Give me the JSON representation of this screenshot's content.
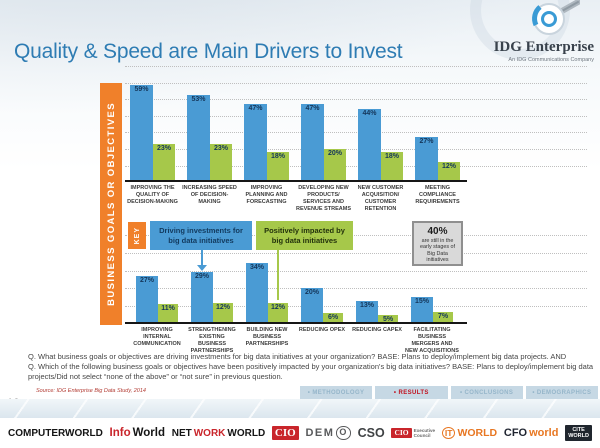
{
  "slide": {
    "page_number": "16",
    "title": "Quality & Speed are Main Drivers to Invest",
    "brand": {
      "name": "IDG Enterprise",
      "tagline": "An IDG Communications Company"
    },
    "axis_label": "BUSINESS GOALS OR OBJECTIVES",
    "key": {
      "label": "KEY",
      "driving_label": "Driving investments for big data initiatives",
      "impacted_label": "Positively impacted by big data initiatives"
    },
    "callout": {
      "value": "40%",
      "text": "are still in the early stages of Big Data initiatives"
    },
    "questions": {
      "q1": "Q. What business goals or objectives are driving investments for big data initiatives at your organization? BASE: Plans to deploy/implement big data projects. AND",
      "q2": "Q. Which of the following business goals or objectives have been positively impacted by your organization's big data initiatives? BASE: Plans to deploy/implement big data projects/Did not select “none of the above” or “not sure” in previous question."
    },
    "source": "Source: IDG Enterprise Big Data Study, 2014",
    "nav": [
      {
        "label": "• METHODOLOGY",
        "active": false
      },
      {
        "label": "• RESULTS",
        "active": true
      },
      {
        "label": "• CONCLUSIONS",
        "active": false
      },
      {
        "label": "• DEMOGRAPHICS",
        "active": false
      }
    ]
  },
  "colors": {
    "bar_blue": "#4a9bd4",
    "bar_green": "#a6c84a",
    "orange": "#f0802a",
    "title_blue": "#2e7cb3",
    "nav_red": "#c1121f"
  },
  "chart_data": {
    "type": "bar",
    "title": "Quality & Speed are Main Drivers to Invest",
    "values_unit": "%",
    "legend": [
      "Driving investments for big data initiatives",
      "Positively impacted by big data initiatives"
    ],
    "legend_position": "middle-left",
    "grid": "dotted-horizontal",
    "ylim": [
      0,
      60
    ],
    "rows": [
      {
        "categories": [
          "IMPROVING THE QUALITY OF DECISION-MAKING",
          "INCREASING SPEED OF DECISION-MAKING",
          "IMPROVING PLANNING AND FORECASTING",
          "DEVELOPING NEW PRODUCTS/ SERVICES AND REVENUE STREAMS",
          "NEW CUSTOMER ACQUISITION/ CUSTOMER RETENTION",
          "MEETING COMPLIANCE REQUIREMENTS"
        ],
        "series": [
          {
            "name": "Driving investments for big data initiatives",
            "values": [
              59,
              53,
              47,
              47,
              44,
              27
            ]
          },
          {
            "name": "Positively impacted by big data initiatives",
            "values": [
              23,
              23,
              18,
              20,
              18,
              12
            ]
          }
        ]
      },
      {
        "categories": [
          "IMPROVING INTERNAL COMMUNICATION",
          "STRENGTHENING EXISTING BUSINESS PARTNERSHIPS",
          "BUILDING NEW BUSINESS PARTNERSHIPS",
          "REDUCING OPEX",
          "REDUCING CAPEX",
          "FACILITATING BUSINESS MERGERS AND NEW ACQUISITIONS"
        ],
        "series": [
          {
            "name": "Driving investments for big data initiatives",
            "values": [
              27,
              29,
              34,
              20,
              13,
              15
            ]
          },
          {
            "name": "Positively impacted by big data initiatives",
            "values": [
              11,
              12,
              12,
              6,
              5,
              7
            ]
          }
        ]
      }
    ]
  },
  "footer": {
    "logos": [
      {
        "id": "computerworld",
        "type": "text",
        "size": 10,
        "segments": [
          {
            "text": "COMPUTERWORLD",
            "color": "#141414"
          }
        ]
      },
      {
        "id": "infoworld",
        "type": "text",
        "size": 11.5,
        "segments": [
          {
            "text": "Info",
            "color": "#c9252b"
          },
          {
            "text": "World",
            "color": "#141414"
          }
        ]
      },
      {
        "id": "networkworld",
        "type": "text",
        "size": 10,
        "segments": [
          {
            "text": "NET",
            "color": "#141414"
          },
          {
            "text": "WORK",
            "color": "#c9252b"
          },
          {
            "text": "WORLD",
            "color": "#141414"
          }
        ]
      },
      {
        "id": "cio",
        "type": "box",
        "size": 11,
        "text": "CIO"
      },
      {
        "id": "demo",
        "type": "text",
        "size": 11,
        "letter_spacing": 1.5,
        "segments": [
          {
            "text": "DEM",
            "color": "#58595b"
          },
          {
            "text": "O",
            "color": "#58595b",
            "circle": true
          }
        ]
      },
      {
        "id": "cso",
        "type": "text",
        "size": 12.5,
        "segments": [
          {
            "text": "CSO",
            "color": "#3f4244"
          }
        ]
      },
      {
        "id": "cio-executive-council",
        "type": "box-lines",
        "size": 7.5,
        "text": "CIO",
        "lines": [
          "Executive",
          "Council"
        ],
        "lines_color": "#6b6b6b"
      },
      {
        "id": "itworld",
        "type": "text",
        "size": 10.5,
        "segments": [
          {
            "text": "IT",
            "color": "#e87722",
            "circle": true
          },
          {
            "text": "WORLD",
            "color": "#e87722"
          }
        ]
      },
      {
        "id": "cfoworld",
        "type": "text",
        "size": 11,
        "segments": [
          {
            "text": "CFO",
            "color": "#1f2430"
          },
          {
            "text": "world",
            "color": "#e87722"
          }
        ]
      },
      {
        "id": "citeworld",
        "type": "dark-stack",
        "lines": [
          "CITE",
          "WORLD"
        ]
      }
    ]
  }
}
